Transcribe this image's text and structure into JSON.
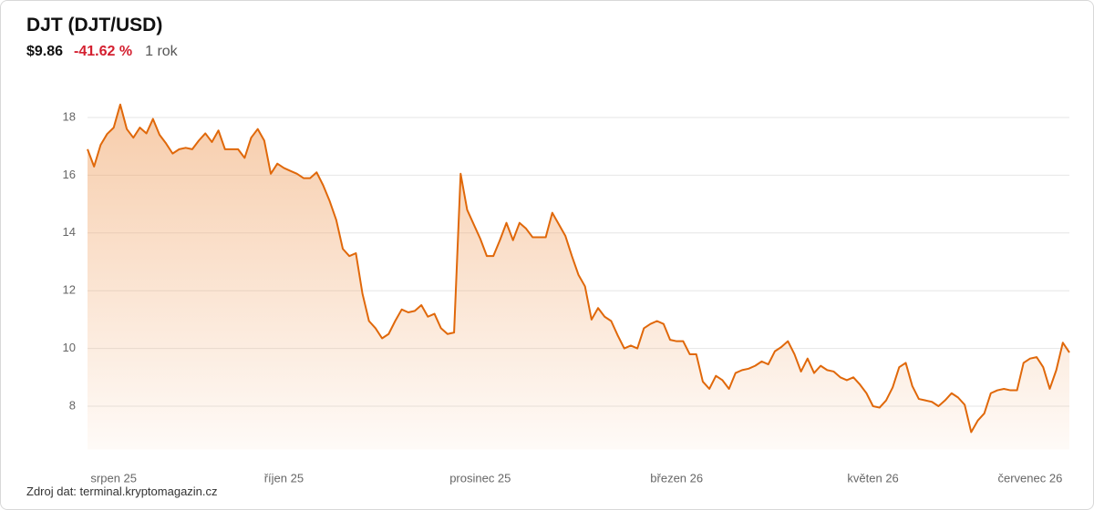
{
  "header": {
    "title": "DJT (DJT/USD)",
    "price": "$9.86",
    "change": "-41.62 %",
    "period": "1 rok"
  },
  "footer": "Zdroj dat: terminal.kryptomagazin.cz",
  "chart_data": {
    "type": "area",
    "color": "#e0680a",
    "categories": [
      null,
      null,
      null,
      null,
      "srpen 25",
      null,
      null,
      null,
      null,
      null,
      null,
      null,
      null,
      null,
      null,
      null,
      null,
      null,
      null,
      null,
      null,
      null,
      null,
      null,
      null,
      null,
      null,
      null,
      null,
      null,
      "říjen 25",
      null,
      null,
      null,
      null,
      null,
      null,
      null,
      null,
      null,
      null,
      null,
      null,
      null,
      null,
      null,
      null,
      null,
      null,
      null,
      null,
      null,
      null,
      null,
      null,
      null,
      null,
      null,
      null,
      null,
      "prosinec 25",
      null,
      null,
      null,
      null,
      null,
      null,
      null,
      null,
      null,
      null,
      null,
      null,
      null,
      null,
      null,
      null,
      null,
      null,
      null,
      null,
      null,
      null,
      null,
      null,
      null,
      null,
      null,
      null,
      null,
      "březen 26",
      null,
      null,
      null,
      null,
      null,
      null,
      null,
      null,
      null,
      null,
      null,
      null,
      null,
      null,
      null,
      null,
      null,
      null,
      null,
      null,
      null,
      null,
      null,
      null,
      null,
      null,
      null,
      null,
      null,
      "květen 26",
      null,
      null,
      null,
      null,
      null,
      null,
      null,
      null,
      null,
      null,
      null,
      null,
      null,
      null,
      null,
      null,
      null,
      null,
      null,
      null,
      null,
      null,
      null,
      "červenec 26",
      null,
      null,
      null,
      null,
      null,
      null
    ],
    "values": [
      16.9,
      16.3,
      17.05,
      17.43,
      17.65,
      18.45,
      17.6,
      17.3,
      17.65,
      17.45,
      17.95,
      17.4,
      17.1,
      16.75,
      16.9,
      16.95,
      16.9,
      17.2,
      17.45,
      17.15,
      17.55,
      16.9,
      16.9,
      16.9,
      16.6,
      17.3,
      17.6,
      17.2,
      16.05,
      16.4,
      16.25,
      16.15,
      16.05,
      15.9,
      15.9,
      16.1,
      15.65,
      15.1,
      14.45,
      13.45,
      13.2,
      13.3,
      11.9,
      10.95,
      10.7,
      10.35,
      10.5,
      10.95,
      11.35,
      11.25,
      11.3,
      11.5,
      11.1,
      11.2,
      10.7,
      10.5,
      10.55,
      16.05,
      14.8,
      14.3,
      13.8,
      13.2,
      13.2,
      13.75,
      14.35,
      13.75,
      14.35,
      14.15,
      13.85,
      13.85,
      13.85,
      14.7,
      14.3,
      13.9,
      13.2,
      12.55,
      12.15,
      11.0,
      11.4,
      11.1,
      10.95,
      10.45,
      10.0,
      10.1,
      10.0,
      10.7,
      10.85,
      10.95,
      10.85,
      10.3,
      10.25,
      10.25,
      9.8,
      9.8,
      8.85,
      8.6,
      9.05,
      8.9,
      8.6,
      9.15,
      9.25,
      9.3,
      9.4,
      9.55,
      9.45,
      9.9,
      10.05,
      10.25,
      9.8,
      9.2,
      9.65,
      9.15,
      9.4,
      9.25,
      9.2,
      9.0,
      8.9,
      9.0,
      8.75,
      8.45,
      8.0,
      7.95,
      8.2,
      8.65,
      9.35,
      9.5,
      8.7,
      8.25,
      8.2,
      8.15,
      8.0,
      8.2,
      8.45,
      8.3,
      8.05,
      7.1,
      7.5,
      7.75,
      8.45,
      8.55,
      8.6,
      8.55,
      8.55,
      9.5,
      9.65,
      9.7,
      9.35,
      8.6,
      9.25,
      10.2,
      9.86
    ],
    "ylim": [
      6.5,
      19.5
    ],
    "yticks": [
      8,
      10,
      12,
      14,
      16,
      18
    ],
    "grid": true
  }
}
